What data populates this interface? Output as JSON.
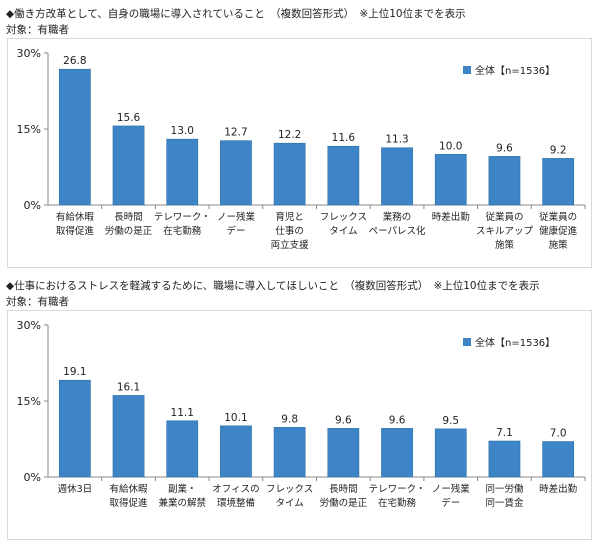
{
  "colors": {
    "bar": "#3d85c6",
    "bar_edge": "#2f6fa8",
    "axis": "#888888",
    "text": "#222222"
  },
  "chart_data": [
    {
      "type": "bar",
      "title": "◆働き方改革として、自身の職場に導入されていること　（複数回答形式）　※上位10位までを表示",
      "subtitle": "対象：有職者",
      "legend": "全体【n=1536】",
      "legend_position": "top-right",
      "ylim": [
        0,
        30
      ],
      "yticks": [
        "0%",
        "15%",
        "30%"
      ],
      "grid": false,
      "categories": [
        [
          "有給休暇",
          "取得促進"
        ],
        [
          "長時間",
          "労働の是正"
        ],
        [
          "テレワーク・",
          "在宅勤務"
        ],
        [
          "ノー残業",
          "デー"
        ],
        [
          "育児と",
          "仕事の",
          "両立支援"
        ],
        [
          "フレックス",
          "タイム"
        ],
        [
          "業務の",
          "ペーパレス化"
        ],
        [
          "時差出勤"
        ],
        [
          "従業員の",
          "スキルアップ",
          "施策"
        ],
        [
          "従業員の",
          "健康促進",
          "施策"
        ]
      ],
      "values": [
        26.8,
        15.6,
        13.0,
        12.7,
        12.2,
        11.6,
        11.3,
        10.0,
        9.6,
        9.2
      ],
      "data_labels": [
        "26.8",
        "15.6",
        "13.0",
        "12.7",
        "12.2",
        "11.6",
        "11.3",
        "10.0",
        "9.6",
        "9.2"
      ]
    },
    {
      "type": "bar",
      "title": "◆仕事におけるストレスを軽減するために、職場に導入してほしいこと　（複数回答形式）　※上位10位までを表示",
      "subtitle": "対象：有職者",
      "legend": "全体【n=1536】",
      "legend_position": "top-right",
      "ylim": [
        0,
        30
      ],
      "yticks": [
        "0%",
        "15%",
        "30%"
      ],
      "grid": false,
      "categories": [
        [
          "週休3日"
        ],
        [
          "有給休暇",
          "取得促進"
        ],
        [
          "副業・",
          "兼業の解禁"
        ],
        [
          "オフィスの",
          "環境整備"
        ],
        [
          "フレックス",
          "タイム"
        ],
        [
          "長時間",
          "労働の是正"
        ],
        [
          "テレワーク・",
          "在宅勤務"
        ],
        [
          "ノー残業",
          "デー"
        ],
        [
          "同一労働",
          "同一賃金"
        ],
        [
          "時差出勤"
        ]
      ],
      "values": [
        19.1,
        16.1,
        11.1,
        10.1,
        9.8,
        9.6,
        9.6,
        9.5,
        7.1,
        7.0
      ],
      "data_labels": [
        "19.1",
        "16.1",
        "11.1",
        "10.1",
        "9.8",
        "9.6",
        "9.6",
        "9.5",
        "7.1",
        "7.0"
      ]
    }
  ]
}
